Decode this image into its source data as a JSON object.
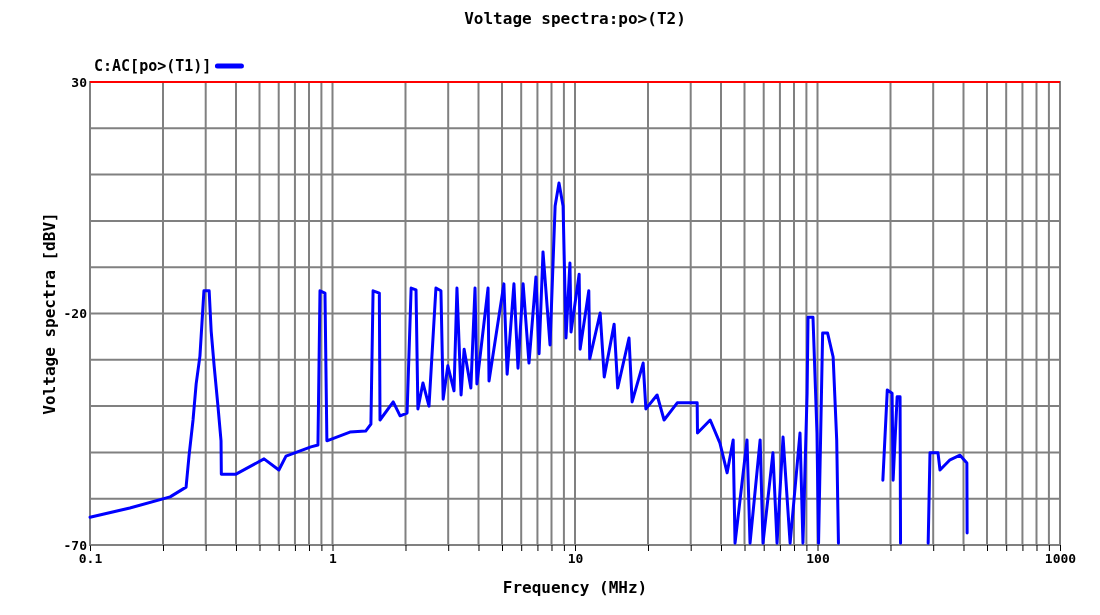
{
  "chart_data": {
    "type": "line",
    "title": "Voltage spectra:po>(T2)",
    "xlabel": "Frequency (MHz)",
    "ylabel": "Voltage spectra [dBV]",
    "log": "x",
    "grid": true,
    "legend": "top left",
    "xlim": [
      0.1,
      1000
    ],
    "ylim": [
      -70,
      30
    ],
    "xticks": [
      0.1,
      {
        "value": 0.2,
        "label": null
      },
      {
        "value": 0.3,
        "label": null
      },
      {
        "value": 0.4,
        "label": null
      },
      {
        "value": 0.5,
        "label": null
      },
      {
        "value": 0.6,
        "label": null
      },
      {
        "value": 0.7,
        "label": null
      },
      {
        "value": 0.8,
        "label": null
      },
      {
        "value": 0.9,
        "label": null
      },
      1,
      {
        "value": 2,
        "label": null
      },
      {
        "value": 3,
        "label": null
      },
      {
        "value": 4,
        "label": null
      },
      {
        "value": 5,
        "label": null
      },
      {
        "value": 6,
        "label": null
      },
      {
        "value": 7,
        "label": null
      },
      {
        "value": 8,
        "label": null
      },
      {
        "value": 9,
        "label": null
      },
      10,
      {
        "value": 20,
        "label": null
      },
      {
        "value": 30,
        "label": null
      },
      {
        "value": 40,
        "label": null
      },
      {
        "value": 50,
        "label": null
      },
      {
        "value": 60,
        "label": null
      },
      {
        "value": 70,
        "label": null
      },
      {
        "value": 80,
        "label": null
      },
      {
        "value": 90,
        "label": null
      },
      100,
      {
        "value": 200,
        "label": null
      },
      {
        "value": 300,
        "label": null
      },
      {
        "value": 400,
        "label": null
      },
      {
        "value": 500,
        "label": null
      },
      {
        "value": 600,
        "label": null
      },
      {
        "value": 700,
        "label": null
      },
      {
        "value": 800,
        "label": null
      },
      {
        "value": 900,
        "label": null
      },
      1000
    ],
    "yticks": [
      -70,
      {
        "value": -60,
        "label": null
      },
      {
        "value": -50,
        "label": null
      },
      {
        "value": -40,
        "label": null
      },
      {
        "value": -30,
        "label": null
      },
      -20,
      {
        "value": -10,
        "label": null
      },
      {
        "value": 0,
        "label": null
      },
      {
        "value": 10,
        "label": null
      },
      {
        "value": 20,
        "label": null
      },
      30
    ],
    "ref_lines": [
      {
        "axis": "y",
        "value": 30,
        "color": "#ff0000"
      }
    ],
    "series": [
      {
        "name": "C:AC[po>(T1)]",
        "color": "#0000ff",
        "line_style": "solid",
        "x": [
          0.1,
          0.146,
          0.214,
          0.249,
          0.256,
          0.266,
          0.274,
          0.284,
          0.295,
          0.31,
          0.316,
          0.325,
          0.337,
          0.347,
          0.348,
          0.4,
          0.522,
          0.601,
          0.643,
          0.815,
          0.871,
          0.888,
          0.931,
          0.948,
          1.18,
          1.37,
          1.44,
          1.47,
          1.56,
          1.57,
          1.78,
          1.9,
          2.03,
          2.11,
          2.21,
          2.25,
          2.36,
          2.5,
          2.67,
          2.8,
          2.86,
          2.99,
          3.17,
          3.26,
          3.39,
          3.49,
          3.72,
          3.87,
          3.94,
          4.38,
          4.42,
          5.09,
          5.25,
          5.6,
          5.82,
          6.11,
          6.46,
          6.9,
          7.11,
          7.38,
          7.89,
          8.28,
          8.59,
          8.93,
          9.18,
          9.53,
          9.63,
          10.4,
          10.5,
          11.4,
          11.5,
          12.7,
          13.2,
          14.5,
          15,
          16.7,
          17.2,
          19.1,
          19.6,
          21.8,
          23.3,
          26.4,
          31.9,
          32,
          36.1,
          39.6,
          42.4,
          44.9,
          45.7,
          51.2,
          52.7,
          58,
          59.6,
          65.5,
          68.1,
          72.1,
          77.1,
          84.7,
          87.1,
          90.6,
          91.4,
          95.8,
          99.5,
          101,
          105,
          110,
          116,
          120,
          122,
          130,
          186,
          194,
          203,
          205,
          213,
          219,
          220,
          240,
          286,
          291,
          314,
          320,
          352,
          387,
          413,
          414
        ],
        "values": [
          -64,
          -62,
          -59.6,
          -57.5,
          -50.8,
          -43,
          -35.2,
          -29.2,
          -15.1,
          -15.1,
          -23.8,
          -31.3,
          -40,
          -47.5,
          -54.7,
          -54.7,
          -51.4,
          -53.8,
          -50.8,
          -48.8,
          -48.4,
          -15.1,
          -15.6,
          -47.5,
          -45.6,
          -45.4,
          -43.9,
          -15.1,
          -15.6,
          -43,
          -39.1,
          -42.1,
          -41.5,
          -14.5,
          -14.9,
          -40.6,
          -35,
          -40,
          -14.5,
          -15.1,
          -38.5,
          -31.3,
          -36.7,
          -14.5,
          -37.6,
          -27.7,
          -36.1,
          -14.5,
          -35.2,
          -14.5,
          -34.6,
          -13.6,
          -33.1,
          -13.6,
          -31.8,
          -13.6,
          -30.7,
          -12.1,
          -28.7,
          -6.7,
          -26.8,
          3.2,
          8.2,
          3.2,
          -25.3,
          -9.1,
          -24,
          -11.5,
          -27.7,
          -15.1,
          -29.8,
          -19.9,
          -33.7,
          -22.3,
          -36.1,
          -25.3,
          -39.1,
          -30.7,
          -40.6,
          -37.6,
          -43,
          -39.3,
          -39.3,
          -45.8,
          -43,
          -48,
          -54.4,
          -47.3,
          -69.6,
          -47.3,
          -69.6,
          -47.3,
          -69.6,
          -50.1,
          -69.6,
          -46.7,
          -69.6,
          -45.8,
          -69.6,
          -37.2,
          -20.8,
          -20.8,
          -45.8,
          -69.6,
          -24.2,
          -24.2,
          -29.4,
          -47.3,
          -69.6,
          null,
          -56,
          -36.5,
          -37.2,
          -56,
          -38,
          -38,
          -69.6,
          null,
          -69.6,
          -50.1,
          -50.1,
          -53.8,
          -51.6,
          -50.6,
          -52.3,
          -67.4
        ]
      }
    ]
  }
}
